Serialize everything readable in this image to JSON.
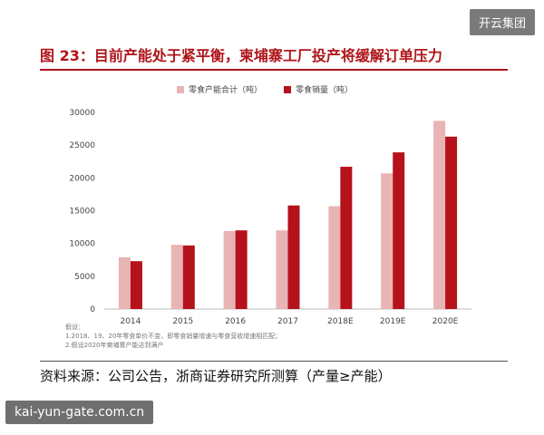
{
  "watermark_top": "开云集团",
  "watermark_bottom": "kai-yun-gate.com.cn",
  "figure_title": "图 23：目前产能处于紧平衡，柬埔寨工厂投产将缓解订单压力",
  "source": "资料来源：公司公告，浙商证券研究所测算（产量≥产能）",
  "notes": [
    "假设：",
    "1.2018、19、20年零食单价不变，即零食销量增速与零食营收增速相匹配；",
    "2.假设2020年柬埔寨产能达到满产"
  ],
  "colors": {
    "title": "#b0141a",
    "capacity": "#e8b4b4",
    "sales": "#b5121b"
  },
  "chart_data": {
    "type": "bar",
    "categories": [
      "2014",
      "2015",
      "2016",
      "2017",
      "2018E",
      "2019E",
      "2020E"
    ],
    "series": [
      {
        "name": "零食产能合计（吨）",
        "values": [
          7900,
          9800,
          11900,
          12000,
          15700,
          20700,
          28700
        ]
      },
      {
        "name": "零食销量（吨）",
        "values": [
          7300,
          9700,
          12000,
          15800,
          21700,
          23900,
          26300
        ]
      }
    ],
    "yticks": [
      0,
      5000,
      10000,
      15000,
      20000,
      25000,
      30000
    ],
    "ylim": [
      0,
      30000
    ],
    "grid": false,
    "legend": "top"
  }
}
